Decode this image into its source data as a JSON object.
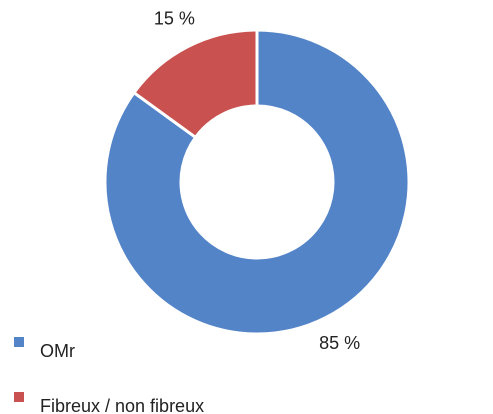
{
  "chart_data": {
    "type": "donut",
    "categories": [
      "OMr",
      "Fibreux / non fibreux"
    ],
    "series": [
      {
        "values": [
          85,
          15
        ],
        "value_labels": [
          "85 %",
          "15 %"
        ],
        "colors": [
          "#5384c8",
          "#c9514f"
        ]
      }
    ],
    "legend": "bottom-left"
  }
}
